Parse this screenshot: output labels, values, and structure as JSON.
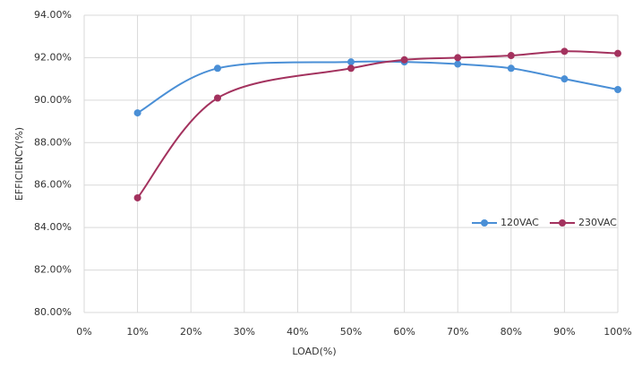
{
  "chart_data": {
    "type": "line",
    "x_label": "LOAD(%)",
    "y_label": "EFFICIENCY(%)",
    "x": [
      10,
      25,
      50,
      60,
      70,
      80,
      90,
      100
    ],
    "series": [
      {
        "name": "120VAC",
        "color": "#4a8fd6",
        "values": [
          89.4,
          91.5,
          91.8,
          91.8,
          91.7,
          91.5,
          91.0,
          90.5
        ]
      },
      {
        "name": "230VAC",
        "color": "#a3325e",
        "values": [
          85.4,
          90.1,
          91.5,
          91.9,
          92.0,
          92.1,
          92.3,
          92.2
        ]
      }
    ],
    "xlim": [
      0,
      100
    ],
    "xticks": [
      {
        "value": 0,
        "label": "0%"
      },
      {
        "value": 10,
        "label": "10%"
      },
      {
        "value": 20,
        "label": "20%"
      },
      {
        "value": 30,
        "label": "30%"
      },
      {
        "value": 40,
        "label": "40%"
      },
      {
        "value": 50,
        "label": "50%"
      },
      {
        "value": 60,
        "label": "60%"
      },
      {
        "value": 70,
        "label": "70%"
      },
      {
        "value": 80,
        "label": "80%"
      },
      {
        "value": 90,
        "label": "90%"
      },
      {
        "value": 100,
        "label": "100%"
      }
    ],
    "ylim": [
      80,
      94
    ],
    "yticks": [
      {
        "value": 80,
        "label": "80.00%"
      },
      {
        "value": 82,
        "label": "82.00%"
      },
      {
        "value": 84,
        "label": "84.00%"
      },
      {
        "value": 86,
        "label": "86.00%"
      },
      {
        "value": 88,
        "label": "88.00%"
      },
      {
        "value": 90,
        "label": "90.00%"
      },
      {
        "value": 92,
        "label": "92.00%"
      },
      {
        "value": 94,
        "label": "94.00%"
      }
    ],
    "grid": true,
    "smooth": true,
    "legend": "right"
  }
}
